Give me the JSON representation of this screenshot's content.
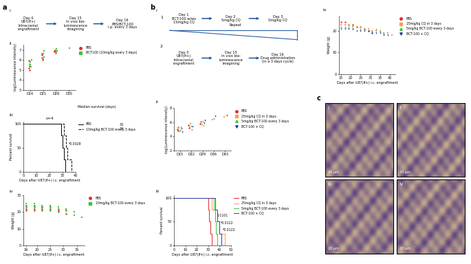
{
  "panel_labels": [
    "a",
    "b",
    "c"
  ],
  "diagrams": {
    "a_i": {
      "label": "i",
      "steps": [
        "Day 0\nU87(lf+)\nIntracranial\nengraftment",
        "Day 15\nIn vivo bio-\nluminescence\nimagining",
        "Day 16\nPBS/BCT-100\ni.p. every 3 days"
      ]
    },
    "b_i": {
      "label": "i",
      "row1": {
        "label": "1",
        "steps": [
          "Day 1\nBCT-100 w/wo\n15mg/kg CQ",
          "Day 2\n5mg/kg CQ",
          "Day 3\n5mg/kg CQ"
        ],
        "repeat": "Repeat"
      },
      "row2": {
        "label": "2",
        "steps": [
          "Day 0\nU87(lf+)\nIntracranial\nengraftment",
          "Day 15\nIn vivo bio-\nluminescence\nimagining",
          "Day 16\nDrug administration\n(in a 3 days cycle)"
        ]
      }
    }
  },
  "chart_data": [
    {
      "type": "scatter",
      "label": "ii",
      "y_label": "log(Luminescence intensity)",
      "categories": [
        "D14",
        "D21",
        "D28",
        "D35"
      ],
      "ylim": [
        3,
        7.5
      ],
      "yticks": [
        3,
        4,
        5,
        6,
        7
      ],
      "legend": "upper left",
      "series": [
        {
          "name": "PBS",
          "color": "#e8262a",
          "marker": "o",
          "x": [
            "D14",
            "D14",
            "D14",
            "D14",
            "D14",
            "D21",
            "D21",
            "D21",
            "D21",
            "D28",
            "D28",
            "D28",
            "D28"
          ],
          "values": [
            5.2,
            5.6,
            5.4,
            5.9,
            5.0,
            6.2,
            6.5,
            6.0,
            6.6,
            6.8,
            7.0,
            6.7,
            6.9
          ]
        },
        {
          "name": "BCT100 (10mg/kg every 3 days)",
          "color": "#3cc43c",
          "marker": "s",
          "x": [
            "D14",
            "D14",
            "D14",
            "D14",
            "D21",
            "D21",
            "D21",
            "D21",
            "D28",
            "D28",
            "D28",
            "D35"
          ],
          "values": [
            5.8,
            5.3,
            6.0,
            5.5,
            6.6,
            6.3,
            6.9,
            6.1,
            6.8,
            7.1,
            6.9,
            7.2
          ]
        }
      ]
    },
    {
      "type": "line",
      "label": "iii",
      "title": "n=4",
      "x_label": "Days after U87(lf+) i.c. engraftment",
      "y_label": "Percent survival",
      "xlim": [
        0,
        40
      ],
      "xticks": [
        0,
        10,
        20,
        30,
        40
      ],
      "ylim": [
        0,
        105
      ],
      "yticks": [
        0,
        50,
        100
      ],
      "legend": "upper left",
      "median_header": "Median survival (days)",
      "series": [
        {
          "name": "PBS",
          "color": "#000000",
          "line_style": "solid",
          "x": [
            0,
            29,
            30,
            31,
            32
          ],
          "values": [
            100,
            75,
            50,
            25,
            0
          ],
          "median": 30
        },
        {
          "name": "10mg/kg BCT-100 every 3 days",
          "color": "#000000",
          "line_style": "dashed",
          "x": [
            0,
            31,
            33,
            34,
            37
          ],
          "values": [
            100,
            75,
            50,
            25,
            0
          ],
          "median": 34
        }
      ],
      "annotations": [
        {
          "text": "*0.0328",
          "x": 35,
          "y": 55
        }
      ]
    },
    {
      "type": "scatter",
      "label": "iv",
      "x_label": "Days after U87(lf+) i.c. engraftment",
      "y_label": "Weight (g)",
      "xlim": [
        15,
        38
      ],
      "xticks": [
        16,
        20,
        25,
        30,
        35
      ],
      "ylim": [
        0,
        30
      ],
      "yticks": [
        0,
        10,
        20,
        30
      ],
      "legend": "upper left",
      "series": [
        {
          "name": "PBS",
          "color": "#e8262a",
          "marker": "o",
          "x": [
            16,
            16,
            16,
            16,
            19,
            19,
            19,
            19,
            22,
            22,
            22,
            22,
            25,
            25,
            25,
            28,
            28,
            28,
            31,
            31
          ],
          "values": [
            23,
            24,
            22,
            21,
            23,
            24,
            22,
            21,
            23,
            23,
            22,
            21,
            22,
            23,
            21,
            22,
            21,
            20,
            21,
            19
          ]
        },
        {
          "name": "10mg/kg BCT-100 every 3 days",
          "color": "#3cc43c",
          "marker": "s",
          "x": [
            16,
            16,
            16,
            16,
            19,
            19,
            19,
            19,
            22,
            22,
            22,
            22,
            25,
            25,
            25,
            25,
            28,
            28,
            28,
            31,
            31,
            31,
            34,
            34,
            37
          ],
          "values": [
            24,
            23,
            25,
            22,
            24,
            23,
            25,
            22,
            23,
            24,
            22,
            21,
            23,
            22,
            24,
            21,
            22,
            23,
            20,
            21,
            22,
            19,
            20,
            18,
            17
          ]
        }
      ]
    },
    {
      "type": "scatter",
      "label": "ii",
      "y_label": "log(Luminescence intensity)",
      "categories": [
        "D15",
        "D22",
        "D29",
        "D36",
        "D43"
      ],
      "ylim": [
        2,
        8
      ],
      "yticks": [
        2,
        4,
        6,
        8
      ],
      "legend": "upper left",
      "series": [
        {
          "name": "PBS",
          "color": "#e8262a",
          "marker": "o",
          "x": [
            "D15",
            "D15",
            "D15",
            "D22",
            "D22",
            "D29",
            "D29"
          ],
          "values": [
            5.0,
            5.3,
            4.8,
            5.6,
            5.2,
            5.8,
            6.1
          ]
        },
        {
          "name": "25mg/kg CQ in 3 days",
          "color": "#f0a050",
          "marker": "s",
          "x": [
            "D15",
            "D15",
            "D22",
            "D22",
            "D29",
            "D29",
            "D36",
            "D43"
          ],
          "values": [
            5.2,
            4.7,
            5.3,
            5.8,
            6.0,
            5.7,
            6.4,
            6.8
          ]
        },
        {
          "name": "5mg/kg BCT-100 every 3 days",
          "color": "#3cc43c",
          "marker": "^",
          "x": [
            "D15",
            "D15",
            "D22",
            "D22",
            "D29",
            "D29",
            "D36"
          ],
          "values": [
            4.9,
            5.4,
            5.5,
            5.0,
            6.2,
            5.6,
            6.6
          ]
        },
        {
          "name": "BCT-100 + CQ",
          "color": "#2b3fa0",
          "marker": "v",
          "x": [
            "D15",
            "D15",
            "D22",
            "D29",
            "D29",
            "D36",
            "D43"
          ],
          "values": [
            5.1,
            4.6,
            5.4,
            5.9,
            6.3,
            6.9,
            7.0
          ]
        }
      ]
    },
    {
      "type": "line",
      "label": "iii",
      "x_label": "Days after U87(lf+) i.c. engraftment",
      "y_label": "Percent survival",
      "xlim": [
        0,
        50
      ],
      "xticks": [
        0,
        10,
        20,
        30,
        40,
        50
      ],
      "ylim": [
        0,
        105
      ],
      "yticks": [
        0,
        50,
        100
      ],
      "legend": "upper left",
      "series": [
        {
          "name": "PBS",
          "color": "#e8262a",
          "line_style": "solid",
          "x": [
            0,
            30,
            31,
            32,
            33
          ],
          "values": [
            100,
            75,
            50,
            25,
            0
          ]
        },
        {
          "name": "25mg/kg CQ in 3 days",
          "color": "#f0a050",
          "line_style": "solid",
          "x": [
            0,
            33,
            36,
            40,
            45
          ],
          "values": [
            100,
            75,
            50,
            25,
            0
          ]
        },
        {
          "name": "5mg/kg BCT-100 every 3 days",
          "color": "#3cc43c",
          "line_style": "solid",
          "x": [
            0,
            35,
            36,
            37,
            38
          ],
          "values": [
            100,
            75,
            50,
            25,
            0
          ]
        },
        {
          "name": "BCT-100 + CQ",
          "color": "#2b3fa0",
          "line_style": "solid",
          "x": [
            0,
            36,
            38,
            40,
            42
          ],
          "values": [
            100,
            75,
            50,
            25,
            0
          ]
        }
      ],
      "annotations": [
        {
          "text": "0.1101",
          "x": 38,
          "y": 60
        },
        {
          "text": "*0.0122",
          "x": 41,
          "y": 45
        },
        {
          "text": "*0.0122",
          "x": 43,
          "y": 30
        }
      ]
    },
    {
      "type": "scatter",
      "label": "iv",
      "x_label": "Days after U87(lf+) i.c. engraftment",
      "y_label": "Weight (g)",
      "xlim": [
        14,
        43
      ],
      "xticks": [
        15,
        20,
        25,
        30,
        35,
        40
      ],
      "ylim": [
        0,
        27
      ],
      "yticks": [
        0,
        10,
        20
      ],
      "legend": "upper left",
      "series": [
        {
          "name": "PBS",
          "color": "#e8262a",
          "marker": "o",
          "x": [
            15,
            17,
            19,
            21,
            23,
            25,
            27,
            29,
            31
          ],
          "values": [
            24,
            24,
            23,
            23,
            22,
            22,
            21,
            20,
            19
          ]
        },
        {
          "name": "25mg/kg CQ in 3 days",
          "color": "#f0a050",
          "marker": "s",
          "x": [
            15,
            17,
            19,
            21,
            23,
            25,
            27,
            29,
            31,
            33,
            35,
            37,
            39,
            41
          ],
          "values": [
            23,
            23,
            23,
            22,
            22,
            22,
            21,
            21,
            20,
            20,
            20,
            19,
            19,
            18
          ]
        },
        {
          "name": "5mg/kg BCT-100 every 3 days",
          "color": "#3cc43c",
          "marker": "^",
          "x": [
            15,
            17,
            19,
            21,
            23,
            25,
            27,
            29,
            31,
            33,
            35,
            37
          ],
          "values": [
            22,
            22,
            22,
            21,
            22,
            21,
            21,
            20,
            20,
            21,
            20,
            19
          ]
        },
        {
          "name": "BCT-100 + CQ",
          "color": "#2b3fa0",
          "marker": "v",
          "x": [
            15,
            17,
            19,
            21,
            23,
            25,
            27,
            29,
            31,
            33,
            35,
            37,
            39
          ],
          "values": [
            21,
            21,
            21,
            21,
            20,
            20,
            20,
            20,
            19,
            19,
            19,
            18,
            18
          ]
        }
      ]
    }
  ],
  "images": {
    "labels": [
      "i",
      "ii",
      "iii",
      "iv"
    ],
    "scale_bar": "20 μm"
  }
}
